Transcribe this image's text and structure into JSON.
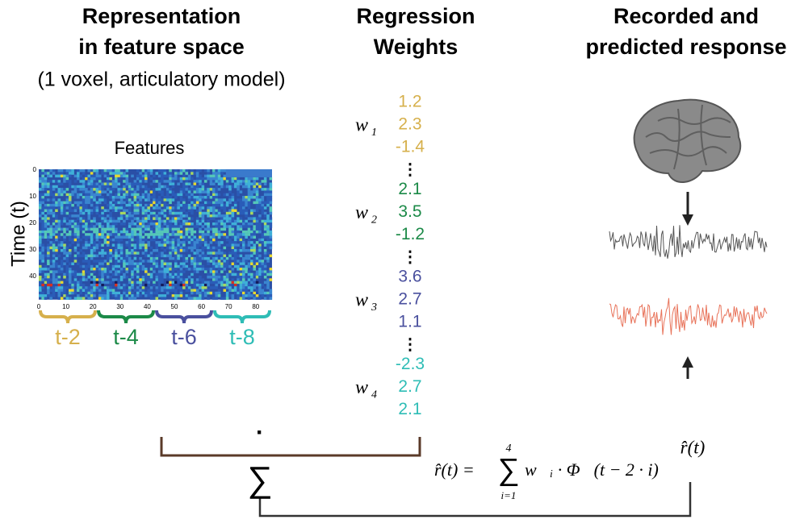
{
  "columns": [
    {
      "title_lines": [
        "Representation",
        "in feature space"
      ],
      "subtitle": "(1 voxel, articulatory model)"
    },
    {
      "title_lines": [
        "Regression",
        "Weights"
      ]
    },
    {
      "title_lines": [
        "Recorded and",
        "predicted response"
      ]
    }
  ],
  "heatmap": {
    "title": "Features",
    "ylabel": "Time (t)",
    "yticks": [
      "0",
      "10",
      "20",
      "30",
      "40"
    ],
    "xticks": [
      "0",
      "10",
      "20",
      "30",
      "40",
      "50",
      "60",
      "70",
      "80"
    ],
    "lags": [
      {
        "label": "t-2",
        "color": "#d6b04c"
      },
      {
        "label": "t-4",
        "color": "#1c8a48"
      },
      {
        "label": "t-6",
        "color": "#4a509e"
      },
      {
        "label": "t-8",
        "color": "#2fbdb6"
      }
    ]
  },
  "weights": [
    {
      "symbol": "w⃗",
      "sub": "1",
      "color": "#d6b04c",
      "values": [
        "1.2",
        "2.3",
        "-1.4"
      ]
    },
    {
      "symbol": "w⃗",
      "sub": "2",
      "color": "#1c8a48",
      "values": [
        "2.1",
        "3.5",
        "-1.2"
      ]
    },
    {
      "symbol": "w⃗",
      "sub": "3",
      "color": "#4a509e",
      "values": [
        "3.6",
        "2.7",
        "1.1"
      ]
    },
    {
      "symbol": "w⃗",
      "sub": "4",
      "color": "#2fbdb6",
      "values": [
        "-2.3",
        "2.7",
        "2.1"
      ]
    }
  ],
  "ellipsis": "⋮",
  "dot": "·",
  "sum": "∑",
  "formula": {
    "lhs": "r̂(t) =",
    "upper": "4",
    "lower": "i=1",
    "rhs": "w⃗ᵢ · Φ⃗(t − 2 · i)"
  },
  "prediction": "r̂(t)"
}
